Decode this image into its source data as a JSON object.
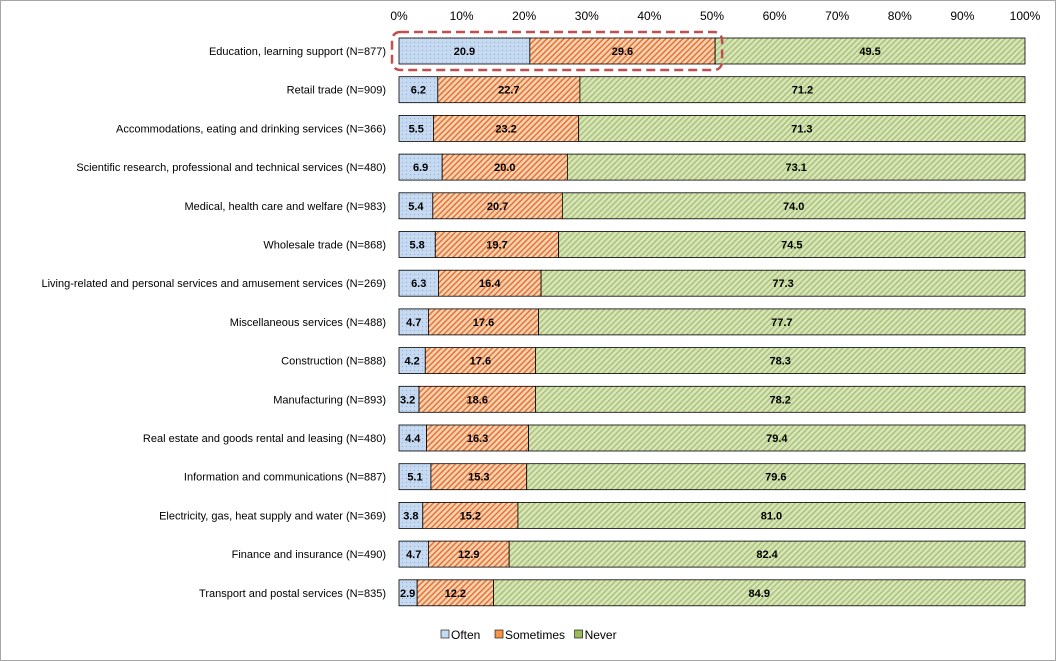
{
  "chart_data": {
    "type": "bar",
    "orientation": "horizontal",
    "stacked": true,
    "normalized_percent": true,
    "categories": [
      "Education, learning support (N=877)",
      "Retail trade (N=909)",
      "Accommodations, eating and drinking services (N=366)",
      "Scientific research, professional and technical services (N=480)",
      "Medical, health care and welfare (N=983)",
      "Wholesale trade (N=868)",
      "Living-related and personal services and amusement services (N=269)",
      "Miscellaneous services (N=488)",
      "Construction (N=888)",
      "Manufacturing (N=893)",
      "Real estate and goods rental and leasing (N=480)",
      "Information and communications (N=887)",
      "Electricity, gas, heat supply and water (N=369)",
      "Finance and insurance (N=490)",
      "Transport and postal services (N=835)"
    ],
    "series": [
      {
        "name": "Often",
        "color": "#c5d9f1",
        "pattern": "dots",
        "values": [
          20.9,
          6.2,
          5.5,
          6.9,
          5.4,
          5.8,
          6.3,
          4.7,
          4.2,
          3.2,
          4.4,
          5.1,
          3.8,
          4.7,
          2.9
        ]
      },
      {
        "name": "Sometimes",
        "color": "#f79646",
        "pattern": "diagonal-stripes",
        "values": [
          29.6,
          22.7,
          23.2,
          20.0,
          20.7,
          19.7,
          16.4,
          17.6,
          17.6,
          18.6,
          16.3,
          15.3,
          15.2,
          12.9,
          12.2
        ]
      },
      {
        "name": "Never",
        "color": "#9bbb59",
        "pattern": "diagonal-stripes",
        "values": [
          49.5,
          71.2,
          71.3,
          73.1,
          74.0,
          74.5,
          77.3,
          77.7,
          78.3,
          78.2,
          79.4,
          79.6,
          81.0,
          82.4,
          84.9
        ]
      }
    ],
    "value_labels": [
      [
        "20.9",
        "6.2",
        "5.5",
        "6.9",
        "5.4",
        "5.8",
        "6.3",
        "4.7",
        "4.2",
        "3.2",
        "4.4",
        "5.1",
        "3.8",
        "4.7",
        "2.9"
      ],
      [
        "29.6",
        "22.7",
        "23.2",
        "20.0",
        "20.7",
        "19.7",
        "16.4",
        "17.6",
        "17.6",
        "18.6",
        "16.3",
        "15.3",
        "15.2",
        "12.9",
        "12.2"
      ],
      [
        "49.5",
        "71.2",
        "71.3",
        "73.1",
        "74.0",
        "74.5",
        "77.3",
        "77.7",
        "78.3",
        "78.2",
        "79.4",
        "79.6",
        "81.0",
        "82.4",
        "84.9"
      ]
    ],
    "xlim": [
      0,
      100
    ],
    "x_ticks": [
      "0%",
      "10%",
      "20%",
      "30%",
      "40%",
      "50%",
      "60%",
      "70%",
      "80%",
      "90%",
      "100%"
    ],
    "x_axis_position": "top",
    "grid": false,
    "legend": {
      "placement": "bottom",
      "entries": [
        "Often",
        "Sometimes",
        "Never"
      ]
    },
    "highlight": {
      "category_index": 0,
      "series": [
        "Often",
        "Sometimes"
      ],
      "style": "dashed",
      "color": "#c0504d"
    },
    "title": "",
    "xlabel": "",
    "ylabel": ""
  }
}
